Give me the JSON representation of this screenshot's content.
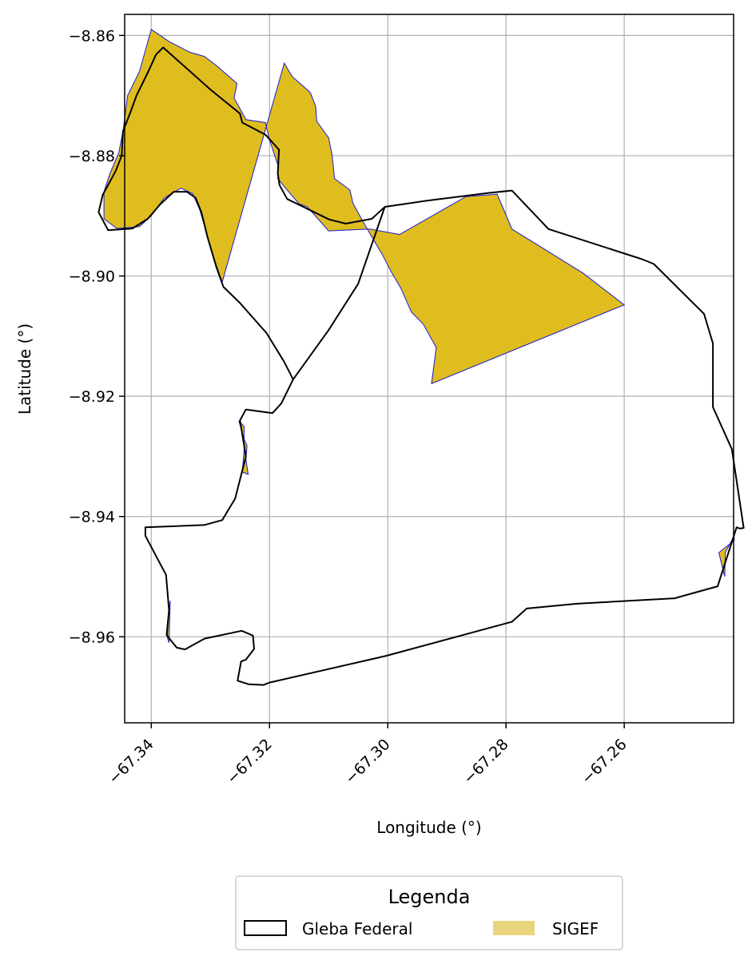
{
  "chart_data": {
    "type": "map",
    "xlabel": "Longitude (°)",
    "ylabel": "Latitude (°)",
    "xlim": [
      -67.3445,
      -67.2415
    ],
    "ylim": [
      -8.9743,
      -8.8565
    ],
    "grid": true,
    "x_ticks": [
      -67.34,
      -67.32,
      -67.3,
      -67.28,
      -67.26
    ],
    "x_tick_labels": [
      "−67.34",
      "−67.32",
      "−67.30",
      "−67.28",
      "−67.26"
    ],
    "y_ticks": [
      -8.86,
      -8.88,
      -8.9,
      -8.92,
      -8.94,
      -8.96
    ],
    "y_tick_labels": [
      "−8.86",
      "−8.88",
      "−8.90",
      "−8.92",
      "−8.94",
      "−8.96"
    ],
    "legend": {
      "title": "Legenda",
      "placement": "bottom-center",
      "entries": [
        {
          "label": "Gleba Federal",
          "style": "outline"
        },
        {
          "label": "SIGEF",
          "style": "fill"
        }
      ]
    },
    "colors": {
      "gleba_stroke": "#000000",
      "sigef_fill": "#dfbd1e",
      "sigef_stroke": "#1a1ad6",
      "legend_sigef_patch": "#e8d47a",
      "grid": "#b0b0b0"
    },
    "gleba_federal": [
      [
        -67.3235,
        -8.9679
      ],
      [
        -67.3254,
        -8.9673
      ],
      [
        -67.3248,
        -8.9641
      ],
      [
        -67.324,
        -8.9638
      ],
      [
        -67.3226,
        -8.962
      ],
      [
        -67.3228,
        -8.9598
      ],
      [
        -67.3247,
        -8.959
      ],
      [
        -67.331,
        -8.9603
      ],
      [
        -67.3343,
        -8.9621
      ],
      [
        -67.3357,
        -8.9618
      ],
      [
        -67.3374,
        -8.9597
      ],
      [
        -67.337,
        -8.9556
      ],
      [
        -67.3375,
        -8.9497
      ],
      [
        -67.341,
        -8.9432
      ],
      [
        -67.341,
        -8.9418
      ],
      [
        -67.331,
        -8.9414
      ],
      [
        -67.328,
        -8.9406
      ],
      [
        -67.3258,
        -8.937
      ],
      [
        -67.324,
        -8.93
      ],
      [
        -67.325,
        -8.924
      ],
      [
        -67.324,
        -8.9222
      ],
      [
        -67.3195,
        -8.9228
      ],
      [
        -67.318,
        -8.9212
      ],
      [
        -67.316,
        -8.9172
      ],
      [
        -67.31,
        -8.909
      ],
      [
        -67.305,
        -8.9013
      ],
      [
        -67.3005,
        -8.8885
      ],
      [
        -67.2935,
        -8.8875
      ],
      [
        -67.283,
        -8.8862
      ],
      [
        -67.279,
        -8.8858
      ],
      [
        -67.2728,
        -8.8922
      ],
      [
        -67.257,
        -8.8972
      ],
      [
        -67.255,
        -8.898
      ],
      [
        -67.2465,
        -8.9063
      ],
      [
        -67.245,
        -8.9112
      ],
      [
        -67.245,
        -8.9218
      ],
      [
        -67.2418,
        -8.9288
      ],
      [
        -67.2398,
        -8.9419
      ],
      [
        -67.2404,
        -8.942
      ],
      [
        -67.241,
        -8.9418
      ],
      [
        -67.2442,
        -8.9516
      ],
      [
        -67.2515,
        -8.9536
      ],
      [
        -67.268,
        -8.9545
      ],
      [
        -67.2765,
        -8.9553
      ],
      [
        -67.279,
        -8.9575
      ],
      [
        -67.3004,
        -8.9632
      ],
      [
        -67.32,
        -8.9676
      ],
      [
        -67.321,
        -8.968
      ]
    ],
    "gleba_federal_north": [
      [
        -67.3006,
        -8.8886
      ],
      [
        -67.3027,
        -8.8905
      ],
      [
        -67.3071,
        -8.8913
      ],
      [
        -67.3099,
        -8.8906
      ],
      [
        -67.317,
        -8.8872
      ],
      [
        -67.3183,
        -8.8849
      ],
      [
        -67.3186,
        -8.883
      ],
      [
        -67.3184,
        -8.879
      ],
      [
        -67.3207,
        -8.8765
      ],
      [
        -67.3246,
        -8.8745
      ],
      [
        -67.325,
        -8.873
      ],
      [
        -67.33,
        -8.869
      ],
      [
        -67.338,
        -8.862
      ],
      [
        -67.3392,
        -8.8632
      ],
      [
        -67.3405,
        -8.866
      ],
      [
        -67.3425,
        -8.87
      ],
      [
        -67.3435,
        -8.8727
      ],
      [
        -67.3448,
        -8.876
      ],
      [
        -67.345,
        -8.88
      ],
      [
        -67.346,
        -8.8825
      ],
      [
        -67.3482,
        -8.8865
      ],
      [
        -67.3489,
        -8.8894
      ],
      [
        -67.3473,
        -8.8924
      ],
      [
        -67.3432,
        -8.8921
      ],
      [
        -67.3406,
        -8.8905
      ],
      [
        -67.3385,
        -8.8881
      ],
      [
        -67.3362,
        -8.886
      ],
      [
        -67.334,
        -8.886
      ],
      [
        -67.3325,
        -8.887
      ],
      [
        -67.3315,
        -8.8895
      ],
      [
        -67.3305,
        -8.8935
      ],
      [
        -67.329,
        -8.8985
      ],
      [
        -67.3278,
        -8.9018
      ],
      [
        -67.325,
        -8.9045
      ],
      [
        -67.3205,
        -8.9095
      ],
      [
        -67.3175,
        -8.9143
      ],
      [
        -67.316,
        -8.9172
      ]
    ],
    "sigef": [
      [
        -67.3175,
        -8.8646
      ],
      [
        -67.3162,
        -8.8668
      ],
      [
        -67.3131,
        -8.8695
      ],
      [
        -67.3122,
        -8.8718
      ],
      [
        -67.312,
        -8.8743
      ],
      [
        -67.31,
        -8.877
      ],
      [
        -67.3094,
        -8.88
      ],
      [
        -67.309,
        -8.8838
      ],
      [
        -67.3064,
        -8.8857
      ],
      [
        -67.3059,
        -8.8879
      ],
      [
        -67.3045,
        -8.8904
      ],
      [
        -67.303,
        -8.893
      ],
      [
        -67.301,
        -8.8963
      ],
      [
        -67.2993,
        -8.8995
      ],
      [
        -67.2978,
        -8.902
      ],
      [
        -67.296,
        -8.906
      ],
      [
        -67.294,
        -8.908
      ],
      [
        -67.2918,
        -8.9119
      ],
      [
        -67.2926,
        -8.9179
      ],
      [
        -67.26,
        -8.9048
      ],
      [
        -67.267,
        -8.8995
      ],
      [
        -67.279,
        -8.8922
      ],
      [
        -67.2815,
        -8.8864
      ],
      [
        -67.2868,
        -8.8868
      ],
      [
        -67.298,
        -8.8931
      ],
      [
        -67.303,
        -8.8922
      ],
      [
        -67.31,
        -8.8925
      ],
      [
        -67.3136,
        -8.8885
      ],
      [
        -67.315,
        -8.888
      ],
      [
        -67.3172,
        -8.8855
      ],
      [
        -67.3186,
        -8.8838
      ],
      [
        -67.3185,
        -8.8818
      ],
      [
        -67.32,
        -8.8774
      ],
      [
        -67.3207,
        -8.8745
      ],
      [
        -67.324,
        -8.874
      ],
      [
        -67.326,
        -8.8704
      ],
      [
        -67.3255,
        -8.868
      ],
      [
        -67.329,
        -8.865
      ],
      [
        -67.331,
        -8.8635
      ],
      [
        -67.3335,
        -8.8628
      ],
      [
        -67.337,
        -8.861
      ],
      [
        -67.34,
        -8.859
      ],
      [
        -67.342,
        -8.866
      ],
      [
        -67.344,
        -8.87
      ],
      [
        -67.3448,
        -8.876
      ],
      [
        -67.3455,
        -8.8795
      ],
      [
        -67.347,
        -8.883
      ],
      [
        -67.348,
        -8.886
      ],
      [
        -67.348,
        -8.8905
      ],
      [
        -67.3458,
        -8.8921
      ],
      [
        -67.342,
        -8.8918
      ],
      [
        -67.34,
        -8.89
      ],
      [
        -67.3378,
        -8.887
      ],
      [
        -67.335,
        -8.8854
      ],
      [
        -67.333,
        -8.8863
      ],
      [
        -67.3318,
        -8.889
      ],
      [
        -67.3309,
        -8.892
      ],
      [
        -67.3298,
        -8.896
      ],
      [
        -67.328,
        -8.901
      ]
    ],
    "sigef_small": [
      [
        [
          -67.3252,
          -8.9241
        ],
        [
          -67.3243,
          -8.9271
        ],
        [
          -67.3238,
          -8.9282
        ],
        [
          -67.324,
          -8.9305
        ],
        [
          -67.3236,
          -8.933
        ],
        [
          -67.3246,
          -8.9326
        ],
        [
          -67.3243,
          -8.929
        ],
        [
          -67.3243,
          -8.925
        ]
      ],
      [
        [
          -67.2414,
          -8.9432
        ],
        [
          -67.2429,
          -8.946
        ],
        [
          -67.243,
          -8.95
        ],
        [
          -67.244,
          -8.946
        ],
        [
          -67.2414,
          -8.944
        ]
      ],
      [
        [
          -67.337,
          -8.9556
        ],
        [
          -67.3373,
          -8.96
        ],
        [
          -67.337,
          -8.961
        ],
        [
          -67.3368,
          -8.954
        ]
      ]
    ]
  }
}
